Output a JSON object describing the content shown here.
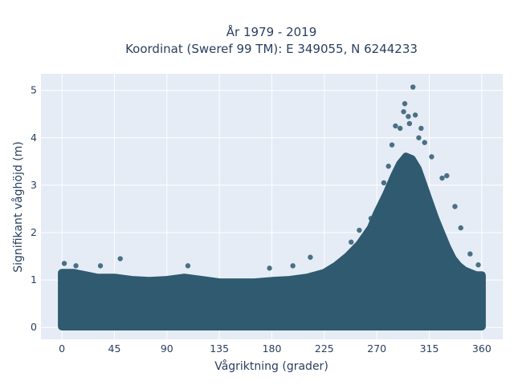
{
  "chart_data": {
    "type": "scatter",
    "title_line1": "År 1979 - 2019",
    "title_line2": "Koordinat (Sweref 99 TM): E 349055, N 6244233",
    "xlabel": "Vågriktning (grader)",
    "ylabel": "Signifikant våghöjd (m)",
    "xlim": [
      -18,
      378
    ],
    "ylim": [
      -0.25,
      5.35
    ],
    "x_ticks": [
      0,
      45,
      90,
      135,
      180,
      225,
      270,
      315,
      360
    ],
    "y_ticks": [
      0,
      1,
      2,
      3,
      4,
      5
    ],
    "grid": true,
    "marker_color": "#2f5a70",
    "plot_background": "#e5ecf6",
    "envelope": {
      "x": [
        0,
        10,
        20,
        30,
        45,
        60,
        75,
        90,
        105,
        120,
        135,
        150,
        165,
        180,
        195,
        210,
        225,
        235,
        245,
        255,
        265,
        270,
        278,
        285,
        290,
        295,
        300,
        305,
        310,
        315,
        320,
        325,
        330,
        335,
        340,
        345,
        350,
        355,
        360
      ],
      "y_upper": [
        1.15,
        1.15,
        1.1,
        1.05,
        1.05,
        1.0,
        0.98,
        1.0,
        1.05,
        1.0,
        0.95,
        0.95,
        0.95,
        0.98,
        1.0,
        1.05,
        1.15,
        1.3,
        1.5,
        1.75,
        2.1,
        2.4,
        2.8,
        3.2,
        3.45,
        3.6,
        3.55,
        3.35,
        3.0,
        2.65,
        2.3,
        2.0,
        1.7,
        1.45,
        1.3,
        1.2,
        1.15,
        1.1,
        1.1
      ]
    },
    "outliers": [
      {
        "x": 2,
        "y": 1.35
      },
      {
        "x": 12,
        "y": 1.3
      },
      {
        "x": 33,
        "y": 1.3
      },
      {
        "x": 50,
        "y": 1.45
      },
      {
        "x": 108,
        "y": 1.3
      },
      {
        "x": 178,
        "y": 1.25
      },
      {
        "x": 198,
        "y": 1.3
      },
      {
        "x": 213,
        "y": 1.48
      },
      {
        "x": 248,
        "y": 1.8
      },
      {
        "x": 255,
        "y": 2.05
      },
      {
        "x": 265,
        "y": 2.3
      },
      {
        "x": 276,
        "y": 3.05
      },
      {
        "x": 280,
        "y": 3.4
      },
      {
        "x": 283,
        "y": 3.85
      },
      {
        "x": 286,
        "y": 4.25
      },
      {
        "x": 290,
        "y": 4.2
      },
      {
        "x": 293,
        "y": 4.55
      },
      {
        "x": 294,
        "y": 4.72
      },
      {
        "x": 297,
        "y": 4.45
      },
      {
        "x": 298,
        "y": 4.3
      },
      {
        "x": 301,
        "y": 5.07
      },
      {
        "x": 303,
        "y": 4.48
      },
      {
        "x": 306,
        "y": 4.0
      },
      {
        "x": 308,
        "y": 4.2
      },
      {
        "x": 311,
        "y": 3.9
      },
      {
        "x": 317,
        "y": 3.6
      },
      {
        "x": 326,
        "y": 3.15
      },
      {
        "x": 330,
        "y": 3.2
      },
      {
        "x": 337,
        "y": 2.55
      },
      {
        "x": 342,
        "y": 2.1
      },
      {
        "x": 350,
        "y": 1.55
      },
      {
        "x": 357,
        "y": 1.32
      }
    ]
  }
}
